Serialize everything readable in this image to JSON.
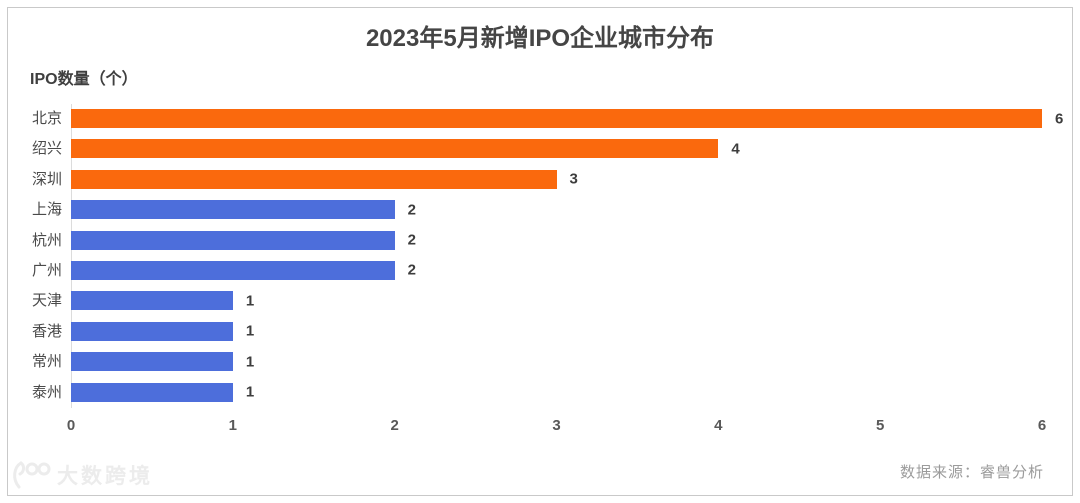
{
  "title": "2023年5月新增IPO企业城市分布",
  "unit_label": "IPO数量（个）",
  "chart_data": {
    "type": "bar",
    "orientation": "horizontal",
    "title": "2023年5月新增IPO企业城市分布",
    "xlabel": "IPO数量（个）",
    "categories": [
      "北京",
      "绍兴",
      "深圳",
      "上海",
      "杭州",
      "广州",
      "天津",
      "香港",
      "常州",
      "泰州"
    ],
    "values": [
      6,
      4,
      3,
      2,
      2,
      2,
      1,
      1,
      1,
      1
    ],
    "bar_colors": [
      "orange",
      "orange",
      "orange",
      "blue",
      "blue",
      "blue",
      "blue",
      "blue",
      "blue",
      "blue"
    ],
    "xlim": [
      0,
      6
    ],
    "x_ticks": [
      "0",
      "1",
      "2",
      "3",
      "4",
      "5",
      "6"
    ],
    "value_labels_shown": true,
    "grid": false,
    "legend": false
  },
  "colors": {
    "orange": "#fa690d",
    "blue": "#4d6edb",
    "axis": "#dcdcdc",
    "frame_border": "#c9c9c9",
    "title_text": "#454545",
    "category_text": "#4a4a4a",
    "value_text": "#3d3d3d",
    "tick_text": "#595959",
    "source_text": "#9b9b9b",
    "watermark_text": "#ececec"
  },
  "footer": {
    "source": "数据来源：睿兽分析",
    "watermark": "大数跨境"
  }
}
